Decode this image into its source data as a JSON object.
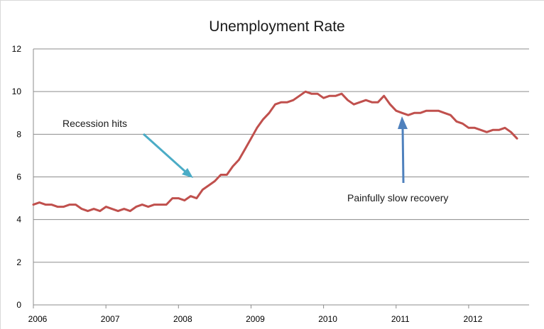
{
  "chart_data": {
    "type": "line",
    "title": "Unemployment Rate",
    "xlabel": "",
    "ylabel": "",
    "ylim": [
      0,
      12
    ],
    "yticks": [
      "0",
      "2",
      "4",
      "6",
      "8",
      "10",
      "12"
    ],
    "xticks": [
      "2006",
      "2007",
      "2008",
      "2009",
      "2010",
      "2011",
      "2012"
    ],
    "xlim": [
      2006,
      2012.833
    ],
    "grid": true,
    "legend": "none",
    "series": [
      {
        "color": "#c0504d",
        "x": [
          2006.0,
          2006.083,
          2006.167,
          2006.25,
          2006.333,
          2006.417,
          2006.5,
          2006.583,
          2006.667,
          2006.75,
          2006.833,
          2006.917,
          2007.0,
          2007.083,
          2007.167,
          2007.25,
          2007.333,
          2007.417,
          2007.5,
          2007.583,
          2007.667,
          2007.75,
          2007.833,
          2007.917,
          2008.0,
          2008.083,
          2008.167,
          2008.25,
          2008.333,
          2008.417,
          2008.5,
          2008.583,
          2008.667,
          2008.75,
          2008.833,
          2008.917,
          2009.0,
          2009.083,
          2009.167,
          2009.25,
          2009.333,
          2009.417,
          2009.5,
          2009.583,
          2009.667,
          2009.75,
          2009.833,
          2009.917,
          2010.0,
          2010.083,
          2010.167,
          2010.25,
          2010.333,
          2010.417,
          2010.5,
          2010.583,
          2010.667,
          2010.75,
          2010.833,
          2010.917,
          2011.0,
          2011.083,
          2011.167,
          2011.25,
          2011.333,
          2011.417,
          2011.5,
          2011.583,
          2011.667,
          2011.75,
          2011.833,
          2011.917,
          2012.0,
          2012.083,
          2012.167,
          2012.25,
          2012.333,
          2012.417,
          2012.5,
          2012.583,
          2012.667
        ],
        "values": [
          4.7,
          4.8,
          4.7,
          4.7,
          4.6,
          4.6,
          4.7,
          4.7,
          4.5,
          4.4,
          4.5,
          4.4,
          4.6,
          4.5,
          4.4,
          4.5,
          4.4,
          4.6,
          4.7,
          4.6,
          4.7,
          4.7,
          4.7,
          5.0,
          5.0,
          4.9,
          5.1,
          5.0,
          5.4,
          5.6,
          5.8,
          6.1,
          6.1,
          6.5,
          6.8,
          7.3,
          7.8,
          8.3,
          8.7,
          9.0,
          9.4,
          9.5,
          9.5,
          9.6,
          9.8,
          10.0,
          9.9,
          9.9,
          9.7,
          9.8,
          9.8,
          9.9,
          9.6,
          9.4,
          9.5,
          9.6,
          9.5,
          9.5,
          9.8,
          9.4,
          9.1,
          9.0,
          8.9,
          9.0,
          9.0,
          9.1,
          9.1,
          9.1,
          9.0,
          8.9,
          8.6,
          8.5,
          8.3,
          8.3,
          8.2,
          8.1,
          8.2,
          8.2,
          8.3,
          8.1,
          7.8
        ]
      }
    ],
    "annotations": [
      {
        "text": "Recession hits",
        "color": "#4bacc6"
      },
      {
        "text": "Painfully slow recovery",
        "color": "#4f81bd"
      }
    ]
  }
}
